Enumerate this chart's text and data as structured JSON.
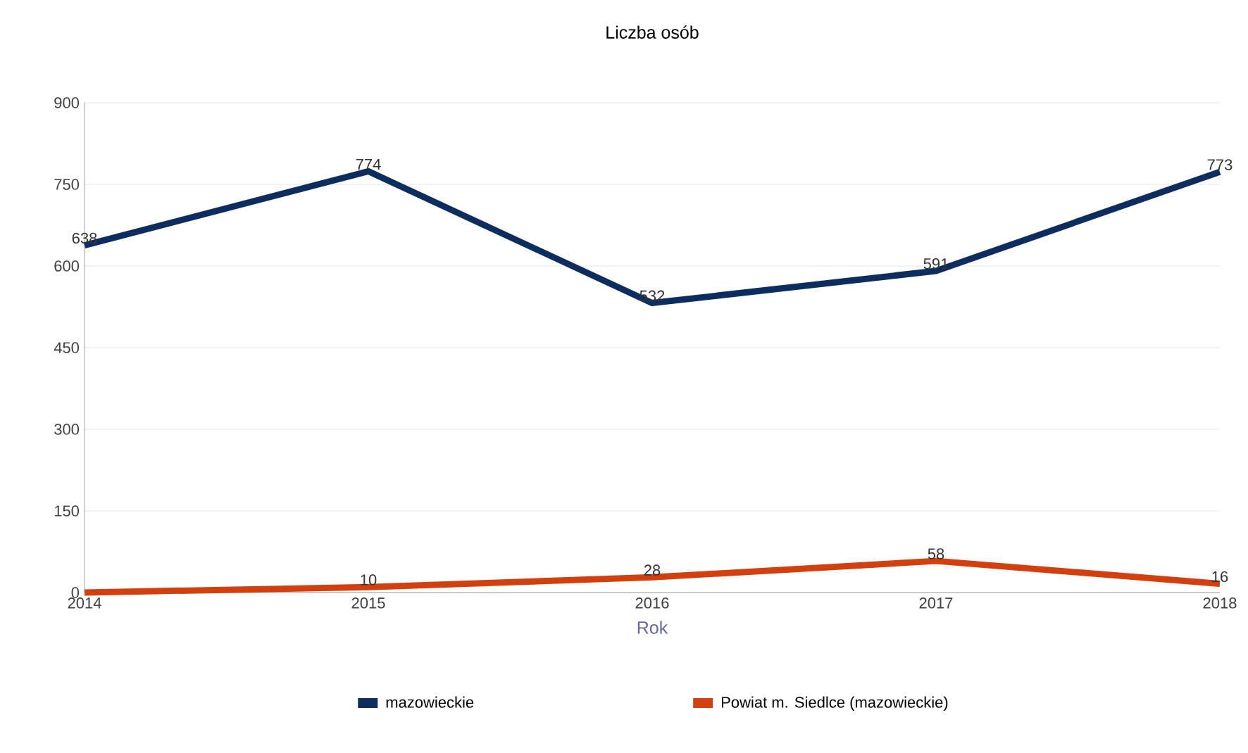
{
  "chart_data": {
    "type": "line",
    "title": "Liczba osób",
    "xlabel": "Rok",
    "x": [
      2014,
      2015,
      2016,
      2017,
      2018
    ],
    "xlim": [
      2014,
      2018
    ],
    "xticks": [
      2014,
      2015,
      2016,
      2017,
      2018
    ],
    "ylim": [
      0,
      900
    ],
    "yticks": [
      0,
      150,
      300,
      450,
      600,
      750,
      900
    ],
    "grid": "y",
    "legend": "bottom",
    "marker": "none",
    "line_style": "solid",
    "series": [
      {
        "name": "mazowieckie",
        "color": "#0c2d5e",
        "values": [
          638,
          774,
          532,
          591,
          773
        ],
        "value_labels": [
          "638",
          "774",
          "532",
          "591",
          "773"
        ]
      },
      {
        "name": "Powiat m. Siedlce (mazowieckie)",
        "color": "#d2400f",
        "values": [
          0,
          10,
          28,
          58,
          16
        ],
        "value_labels": [
          null,
          "10",
          "28",
          "58",
          "16"
        ]
      }
    ]
  }
}
